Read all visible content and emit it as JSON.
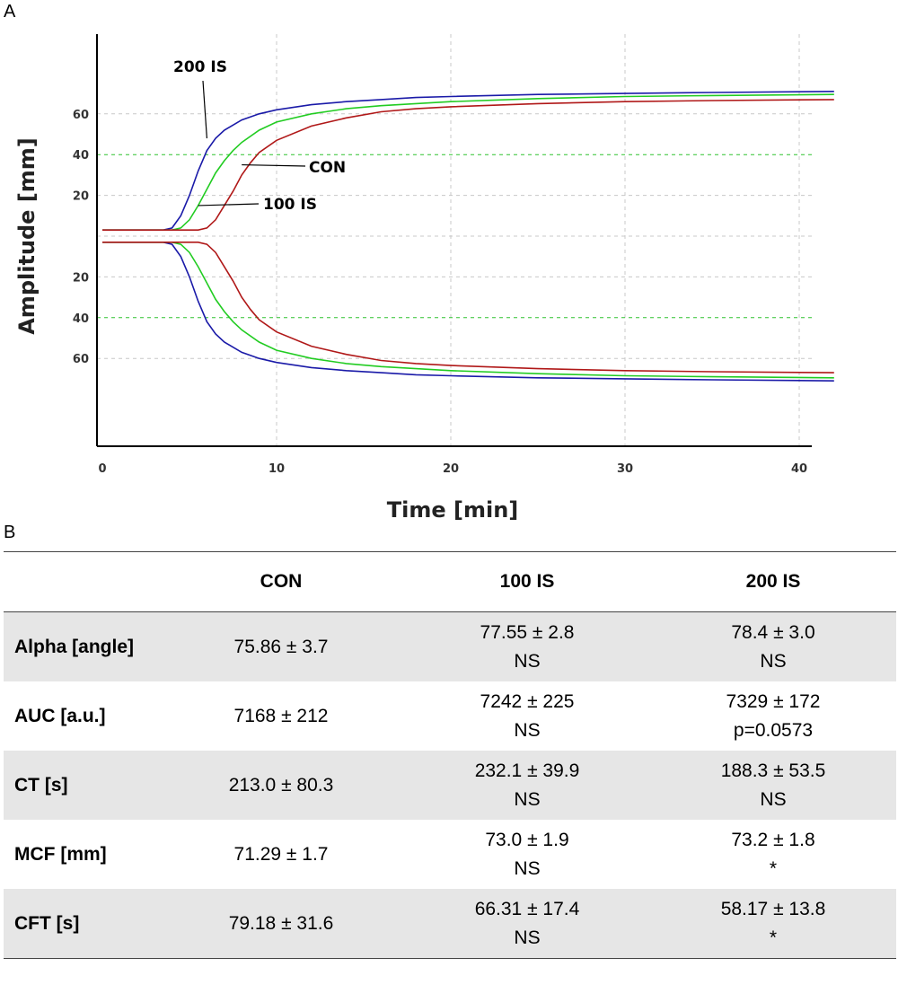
{
  "panels": {
    "a": "A",
    "b": "B"
  },
  "chart_data": {
    "type": "line",
    "title": "",
    "xlabel": "Time [min]",
    "ylabel": "Amplitude [mm]",
    "xlim": [
      0,
      42
    ],
    "ylim": [
      -100,
      100
    ],
    "x_ticks": [
      0,
      10,
      20,
      30,
      40
    ],
    "y_ticks": [
      60,
      40,
      20,
      0,
      -20,
      -40,
      -60
    ],
    "y_tick_labels": [
      "60",
      "40",
      "20",
      "",
      "20",
      "40",
      "60"
    ],
    "grid": true,
    "reference_lines": [
      40,
      -40
    ],
    "series": [
      {
        "name": "200 IS",
        "color": "#1a1aa8",
        "x": [
          0,
          3.5,
          4,
          4.5,
          5,
          5.5,
          6,
          6.5,
          7,
          8,
          9,
          10,
          12,
          14,
          16,
          18,
          20,
          25,
          30,
          35,
          42
        ],
        "y": [
          3,
          3,
          4,
          10,
          20,
          32,
          42,
          48,
          52,
          57,
          60,
          62,
          64.5,
          66,
          67,
          68,
          68.5,
          69.5,
          70,
          70.5,
          71
        ]
      },
      {
        "name": "100 IS",
        "color": "#22cc22",
        "x": [
          0,
          4,
          4.5,
          5,
          5.5,
          6,
          6.5,
          7,
          7.5,
          8,
          9,
          10,
          12,
          14,
          16,
          18,
          20,
          25,
          30,
          35,
          42
        ],
        "y": [
          3,
          3,
          4,
          8,
          15,
          23,
          31,
          37,
          42,
          46,
          52,
          56,
          60,
          62.5,
          64,
          65,
          66,
          67.5,
          68.5,
          69,
          69.5
        ]
      },
      {
        "name": "CON",
        "color": "#b01818",
        "x": [
          0,
          5.5,
          6,
          6.5,
          7,
          7.5,
          8,
          8.5,
          9,
          10,
          12,
          14,
          16,
          18,
          20,
          25,
          30,
          35,
          42
        ],
        "y": [
          3,
          3,
          4,
          8,
          15,
          22,
          30,
          36,
          41,
          47,
          54,
          58,
          61,
          62.5,
          63.5,
          65,
          66,
          66.5,
          67
        ]
      }
    ],
    "annotations": [
      {
        "text": "200 IS",
        "series": "200 IS"
      },
      {
        "text": "CON",
        "series": "CON"
      },
      {
        "text": "100 IS",
        "series": "100 IS"
      }
    ]
  },
  "table": {
    "headers": [
      "",
      "CON",
      "100 IS",
      "200 IS"
    ],
    "rows": [
      {
        "label": "Alpha [angle]",
        "con": "75.86 ± 3.7",
        "is100": "77.55 ± 2.8",
        "is100_sig": "NS",
        "is200": "78.4 ± 3.0",
        "is200_sig": "NS"
      },
      {
        "label": "AUC [a.u.]",
        "con": "7168 ± 212",
        "is100": "7242 ± 225",
        "is100_sig": "NS",
        "is200": "7329 ± 172",
        "is200_sig": "p=0.0573"
      },
      {
        "label": "CT [s]",
        "con": "213.0 ± 80.3",
        "is100": "232.1 ± 39.9",
        "is100_sig": "NS",
        "is200": "188.3 ± 53.5",
        "is200_sig": "NS"
      },
      {
        "label": "MCF [mm]",
        "con": "71.29 ± 1.7",
        "is100": "73.0 ± 1.9",
        "is100_sig": "NS",
        "is200": "73.2 ± 1.8",
        "is200_sig": "*"
      },
      {
        "label": "CFT [s]",
        "con": "79.18 ± 31.6",
        "is100": "66.31 ± 17.4",
        "is100_sig": "NS",
        "is200": "58.17 ± 13.8",
        "is200_sig": "*"
      }
    ]
  }
}
